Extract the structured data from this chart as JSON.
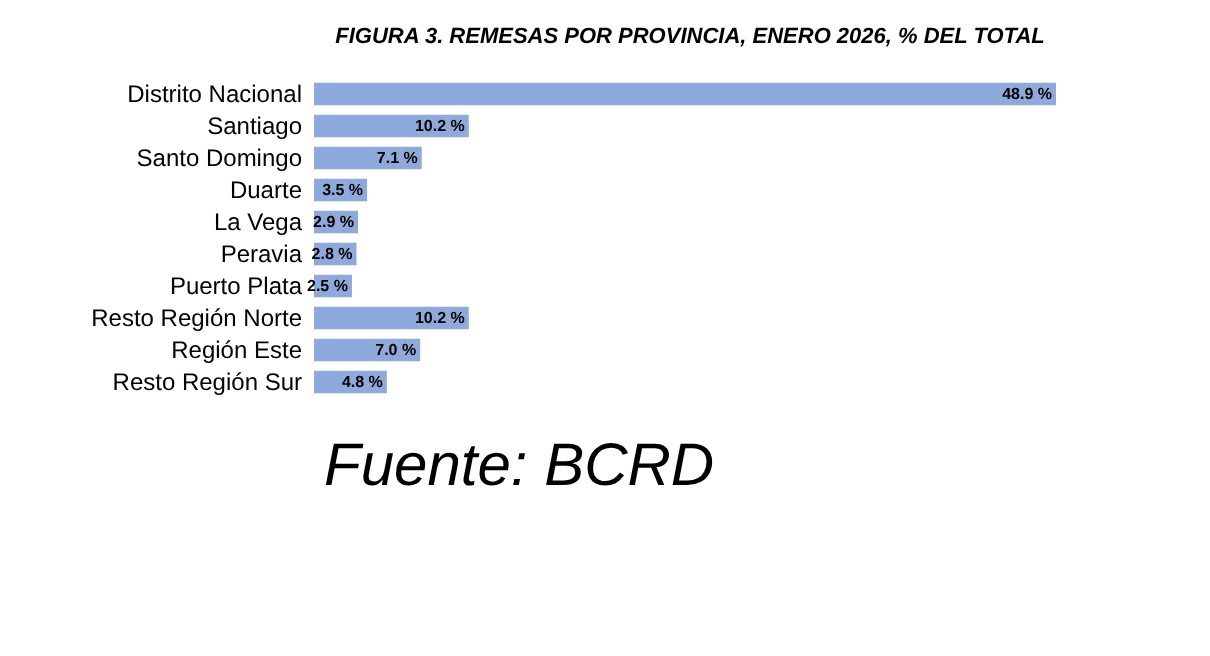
{
  "chart_data": {
    "type": "bar",
    "orientation": "horizontal",
    "title": "FIGURA 3. REMESAS POR PROVINCIA, ENERO 2026, % DEL TOTAL",
    "categories": [
      "Distrito Nacional",
      "Santiago",
      "Santo Domingo",
      "Duarte",
      "La Vega",
      "Peravia",
      "Puerto Plata",
      "Resto Región Norte",
      "Región Este",
      "Resto Región Sur"
    ],
    "values": [
      48.9,
      10.2,
      7.1,
      3.5,
      2.9,
      2.8,
      2.5,
      10.2,
      7.0,
      4.8
    ],
    "value_labels": [
      "48.9 %",
      "10.2 %",
      "7.1 %",
      "3.5 %",
      "2.9 %",
      "2.8 %",
      "2.5 %",
      "10.2 %",
      "7.0 %",
      "4.8 %"
    ],
    "color": "#8eaadb",
    "annotations": [
      "Fuente: BCRD"
    ]
  }
}
